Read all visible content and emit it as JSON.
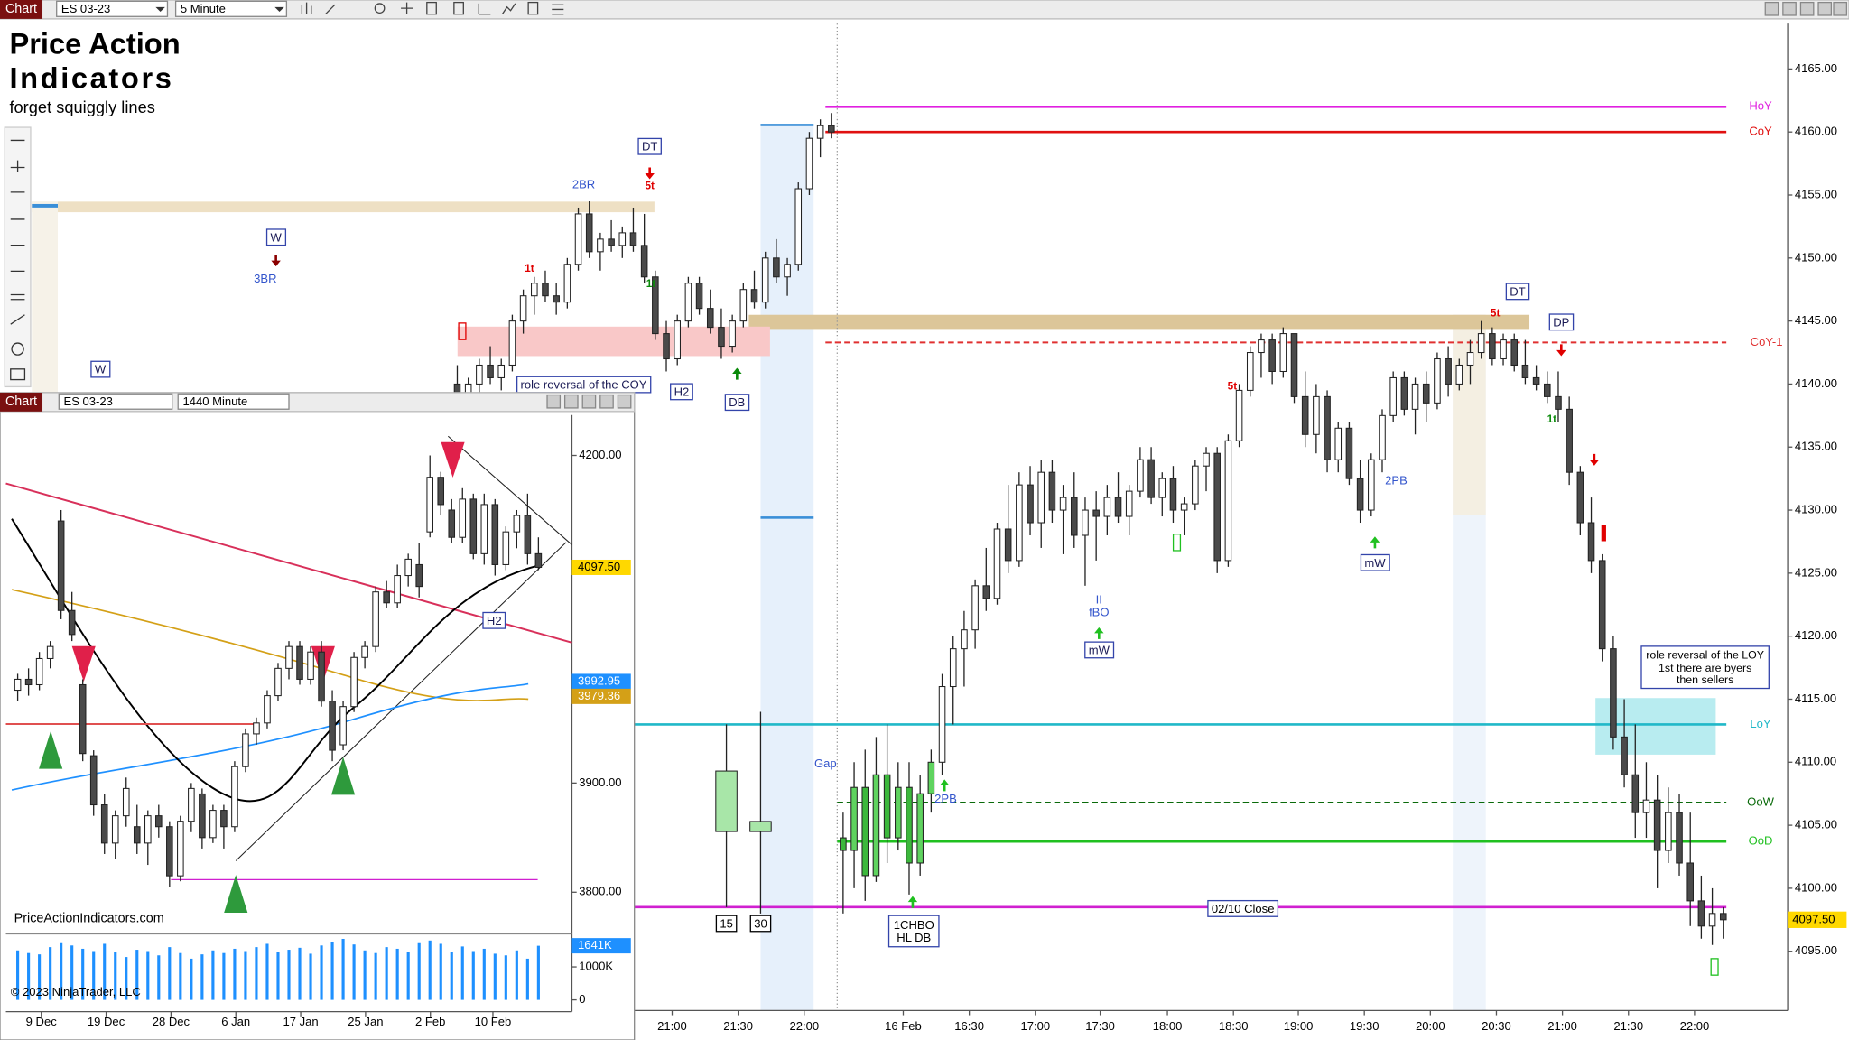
{
  "toolbar": {
    "tab": "Chart",
    "instrument": "ES 03-23",
    "interval": "5 Minute"
  },
  "branding": {
    "title_line1": "Price Action",
    "title_line2": "Indicators",
    "tagline": "forget squiggly lines"
  },
  "main_chart": {
    "ylim": [
      4090.3,
      4168.6
    ],
    "yticks": [
      {
        "value": 4095,
        "label": "4095.00"
      },
      {
        "value": 4100,
        "label": "4100.00"
      },
      {
        "value": 4105,
        "label": "4105.00"
      },
      {
        "value": 4110,
        "label": "4110.00"
      },
      {
        "value": 4115,
        "label": "4115.00"
      },
      {
        "value": 4120,
        "label": "4120.00"
      },
      {
        "value": 4125,
        "label": "4125.00"
      },
      {
        "value": 4130,
        "label": "4130.00"
      },
      {
        "value": 4135,
        "label": "4135.00"
      },
      {
        "value": 4140,
        "label": "4140.00"
      },
      {
        "value": 4145,
        "label": "4145.00"
      },
      {
        "value": 4150,
        "label": "4150.00"
      },
      {
        "value": 4155,
        "label": "4155.00"
      },
      {
        "value": 4160,
        "label": "4160.00"
      },
      {
        "value": 4165,
        "label": "4165.00"
      }
    ],
    "last_price": {
      "value": 4097.5,
      "label": "4097.50"
    },
    "time_labels": [
      "21:00",
      "21:30",
      "22:00",
      "16 Feb",
      "16:30",
      "17:00",
      "17:30",
      "18:00",
      "18:30",
      "19:00",
      "19:30",
      "20:00",
      "20:30",
      "21:00",
      "21:30",
      "22:00"
    ],
    "levels": [
      {
        "name": "HoY",
        "value": 4162,
        "color": "#e020e0",
        "style": "solid"
      },
      {
        "name": "CoY",
        "value": 4160,
        "color": "#e01010",
        "style": "solid"
      },
      {
        "name": "CoY-1",
        "value": 4143.3,
        "color": "#e03030",
        "style": "dashed"
      },
      {
        "name": "LoY",
        "value": 4113,
        "color": "#20b8c8",
        "style": "solid"
      },
      {
        "name": "OoW",
        "value": 4106.8,
        "color": "#0a6a0a",
        "style": "dashed"
      },
      {
        "name": "OoD",
        "value": 4103.7,
        "color": "#20c020",
        "style": "solid"
      },
      {
        "name": "02/10 Close",
        "value": 4098.5,
        "color": "#d020d0",
        "style": "solid"
      }
    ],
    "prior_session": [
      [
        4140,
        4141.5,
        4138,
        4139
      ],
      [
        4139,
        4140.5,
        4137.5,
        4140
      ],
      [
        4140,
        4142,
        4139,
        4141.5
      ],
      [
        4141.5,
        4143,
        4140,
        4140.5
      ],
      [
        4140.5,
        4142,
        4139.5,
        4141.5
      ],
      [
        4141.5,
        4145.5,
        4141,
        4145
      ],
      [
        4145,
        4147.5,
        4144,
        4147
      ],
      [
        4147,
        4148.5,
        4145.5,
        4148
      ],
      [
        4148,
        4149,
        4146.5,
        4147
      ],
      [
        4147,
        4148,
        4145.5,
        4146.5
      ],
      [
        4146.5,
        4150,
        4146,
        4149.5
      ],
      [
        4149.5,
        4154,
        4149,
        4153.5
      ],
      [
        4153.5,
        4154.5,
        4150,
        4150.5
      ],
      [
        4150.5,
        4152,
        4149,
        4151.5
      ],
      [
        4151.5,
        4153,
        4150.5,
        4151
      ],
      [
        4151,
        4152.5,
        4150,
        4152
      ],
      [
        4152,
        4154,
        4150.5,
        4151
      ],
      [
        4151,
        4153.5,
        4148,
        4148.5
      ],
      [
        4148.5,
        4149,
        4143.5,
        4144
      ],
      [
        4144,
        4145,
        4141,
        4142
      ],
      [
        4142,
        4145.5,
        4141.5,
        4145
      ],
      [
        4145,
        4148.5,
        4144.5,
        4148
      ],
      [
        4148,
        4148.5,
        4145.5,
        4146
      ],
      [
        4146,
        4147.5,
        4144,
        4144.5
      ],
      [
        4144.5,
        4146,
        4142,
        4143
      ],
      [
        4143,
        4145.5,
        4142.5,
        4145
      ],
      [
        4145,
        4148,
        4144.5,
        4147.5
      ],
      [
        4147.5,
        4149,
        4146,
        4146.5
      ],
      [
        4146.5,
        4150.5,
        4146,
        4150
      ],
      [
        4150,
        4151.5,
        4148,
        4148.5
      ],
      [
        4148.5,
        4150,
        4147,
        4149.5
      ],
      [
        4149.5,
        4156,
        4149,
        4155.5
      ],
      [
        4155.5,
        4160,
        4155,
        4159.5
      ],
      [
        4159.5,
        4161,
        4158,
        4160.5
      ],
      [
        4160.5,
        4161.5,
        4159.5,
        4160
      ]
    ],
    "session": [
      [
        4104,
        4106,
        4098,
        4103
      ],
      [
        4103,
        4110,
        4100,
        4108
      ],
      [
        4108,
        4111,
        4099,
        4101
      ],
      [
        4101,
        4112,
        4100.5,
        4109
      ],
      [
        4109,
        4113,
        4102,
        4104
      ],
      [
        4104,
        4110,
        4103,
        4108
      ],
      [
        4108,
        4110,
        4099.5,
        4102
      ],
      [
        4102,
        4109,
        4101,
        4107.5
      ],
      [
        4107.5,
        4111,
        4106,
        4110
      ],
      [
        4110,
        4117,
        4109,
        4116
      ],
      [
        4116,
        4120,
        4113,
        4119
      ],
      [
        4119,
        4122,
        4116,
        4120.5
      ],
      [
        4120.5,
        4124.5,
        4119,
        4124
      ],
      [
        4124,
        4127,
        4122,
        4123
      ],
      [
        4123,
        4129,
        4122.5,
        4128.5
      ],
      [
        4128.5,
        4132,
        4125,
        4126
      ],
      [
        4126,
        4133,
        4125.5,
        4132
      ],
      [
        4132,
        4133.5,
        4128,
        4129
      ],
      [
        4129,
        4134,
        4127,
        4133
      ],
      [
        4133,
        4134,
        4129,
        4130
      ],
      [
        4130,
        4132,
        4126.5,
        4131
      ],
      [
        4131,
        4133,
        4127,
        4128
      ],
      [
        4128,
        4131,
        4124,
        4130
      ],
      [
        4130,
        4131.5,
        4126,
        4129.5
      ],
      [
        4129.5,
        4132,
        4128,
        4131
      ],
      [
        4131,
        4133,
        4129,
        4129.5
      ],
      [
        4129.5,
        4132,
        4128,
        4131.5
      ],
      [
        4131.5,
        4135,
        4131,
        4134
      ],
      [
        4134,
        4135,
        4130.5,
        4131
      ],
      [
        4131,
        4133,
        4129.5,
        4132.5
      ],
      [
        4132.5,
        4133.5,
        4129,
        4130
      ],
      [
        4130,
        4131,
        4128,
        4130.5
      ],
      [
        4130.5,
        4134,
        4130,
        4133.5
      ],
      [
        4133.5,
        4135,
        4131.5,
        4134.5
      ],
      [
        4134.5,
        4135,
        4125,
        4126
      ],
      [
        4126,
        4136,
        4125.5,
        4135.5
      ],
      [
        4135.5,
        4140,
        4135,
        4139.5
      ],
      [
        4139.5,
        4143,
        4139,
        4142.5
      ],
      [
        4142.5,
        4144,
        4140.5,
        4143.5
      ],
      [
        4143.5,
        4144,
        4140,
        4141
      ],
      [
        4141,
        4144.5,
        4140.5,
        4144
      ],
      [
        4144,
        4144,
        4138.5,
        4139
      ],
      [
        4139,
        4141,
        4135,
        4136
      ],
      [
        4136,
        4140,
        4134.5,
        4139
      ],
      [
        4139,
        4139.5,
        4133,
        4134
      ],
      [
        4134,
        4137,
        4133,
        4136.5
      ],
      [
        4136.5,
        4137,
        4132,
        4132.5
      ],
      [
        4132.5,
        4134,
        4129,
        4130
      ],
      [
        4130,
        4134.5,
        4129.5,
        4134
      ],
      [
        4134,
        4138,
        4133,
        4137.5
      ],
      [
        4137.5,
        4141,
        4137,
        4140.5
      ],
      [
        4140.5,
        4141,
        4137.5,
        4138
      ],
      [
        4138,
        4140.5,
        4136,
        4140
      ],
      [
        4140,
        4141,
        4137,
        4138.5
      ],
      [
        4138.5,
        4142.5,
        4138,
        4142
      ],
      [
        4142,
        4143,
        4139,
        4140
      ],
      [
        4140,
        4142,
        4139.5,
        4141.5
      ],
      [
        4141.5,
        4143.5,
        4140,
        4142.5
      ],
      [
        4142.5,
        4145,
        4142,
        4144
      ],
      [
        4144,
        4144.5,
        4141.5,
        4142
      ],
      [
        4142,
        4144,
        4141.5,
        4143.5
      ],
      [
        4143.5,
        4144,
        4141,
        4141.5
      ],
      [
        4141.5,
        4143.5,
        4140,
        4140.5
      ],
      [
        4140.5,
        4141.5,
        4139.5,
        4140
      ],
      [
        4140,
        4141,
        4138.5,
        4139
      ],
      [
        4139,
        4141,
        4137,
        4138
      ],
      [
        4138,
        4139,
        4132,
        4133
      ],
      [
        4133,
        4133.5,
        4128,
        4129
      ],
      [
        4129,
        4131,
        4125,
        4126
      ],
      [
        4126,
        4126.5,
        4118,
        4119
      ],
      [
        4119,
        4120,
        4111,
        4112
      ],
      [
        4112,
        4115,
        4108,
        4109
      ],
      [
        4109,
        4113,
        4104,
        4106
      ],
      [
        4106,
        4110,
        4104,
        4107
      ],
      [
        4107,
        4109,
        4100,
        4103
      ],
      [
        4103,
        4108,
        4102,
        4106
      ],
      [
        4106,
        4107.5,
        4101,
        4102
      ],
      [
        4102,
        4106,
        4097,
        4099
      ],
      [
        4099,
        4101,
        4096,
        4097
      ],
      [
        4097,
        4100,
        4095.5,
        4098
      ],
      [
        4098,
        4098.5,
        4096,
        4097.5
      ]
    ],
    "htf_candles": [
      {
        "label": "15",
        "ohlc": [
          4104.5,
          4113,
          4098.5,
          4109.3
        ]
      },
      {
        "label": "30",
        "ohlc": [
          4104.5,
          4114,
          4098,
          4105.3
        ]
      }
    ],
    "annotations": [
      "DT",
      "5t",
      "2BR",
      "1t",
      "1t",
      "W",
      "3BR",
      "W",
      "H2",
      "DB",
      "role reversal of the COY",
      "Gap",
      "2PB",
      "1CHBO",
      "HL DB",
      "II",
      "fBO",
      "mW",
      "mW",
      "2PB",
      "DT",
      "DP",
      "5t",
      "5t",
      "1t",
      "role reversal of the LOY",
      "1st there are byers",
      "then sellers"
    ]
  },
  "inset": {
    "toolbar": {
      "tab": "Chart",
      "instrument": "ES 03-23",
      "interval": "1440 Minute"
    },
    "ylim": [
      3764,
      4237
    ],
    "yticks": [
      {
        "value": 4200,
        "label": "4200.00"
      },
      {
        "value": 3900,
        "label": "3900.00"
      },
      {
        "value": 3800,
        "label": "3800.00"
      }
    ],
    "price_tags": [
      {
        "value": 4097.5,
        "label": "4097.50",
        "color": "#ffd800"
      },
      {
        "value": 3992.95,
        "label": "3992.95",
        "color": "#1e90ff"
      },
      {
        "value": 3979.36,
        "label": "3979.36",
        "color": "#d4a017"
      }
    ],
    "dates": [
      "9 Dec",
      "19 Dec",
      "28 Dec",
      "6 Jan",
      "17 Jan",
      "25 Jan",
      "2 Feb",
      "10 Feb"
    ],
    "candles": [
      [
        3985,
        4000,
        3975,
        3995
      ],
      [
        3995,
        4005,
        3980,
        3990
      ],
      [
        3990,
        4020,
        3985,
        4014
      ],
      [
        4014,
        4030,
        4005,
        4025
      ],
      [
        4140,
        4150,
        4050,
        4058
      ],
      [
        4058,
        4075,
        4030,
        4036
      ],
      [
        3990,
        3995,
        3920,
        3927
      ],
      [
        3925,
        3930,
        3870,
        3880
      ],
      [
        3880,
        3890,
        3835,
        3845
      ],
      [
        3845,
        3875,
        3830,
        3870
      ],
      [
        3870,
        3905,
        3860,
        3895
      ],
      [
        3860,
        3880,
        3835,
        3845
      ],
      [
        3845,
        3875,
        3825,
        3870
      ],
      [
        3870,
        3880,
        3850,
        3860
      ],
      [
        3860,
        3865,
        3805,
        3815
      ],
      [
        3815,
        3870,
        3810,
        3865
      ],
      [
        3865,
        3900,
        3855,
        3895
      ],
      [
        3890,
        3895,
        3840,
        3850
      ],
      [
        3850,
        3880,
        3845,
        3875
      ],
      [
        3875,
        3880,
        3840,
        3860
      ],
      [
        3860,
        3920,
        3855,
        3915
      ],
      [
        3915,
        3950,
        3910,
        3945
      ],
      [
        3945,
        3960,
        3935,
        3955
      ],
      [
        3955,
        3985,
        3950,
        3980
      ],
      [
        3980,
        4010,
        3975,
        4005
      ],
      [
        4005,
        4030,
        3995,
        4025
      ],
      [
        4025,
        4030,
        3990,
        3995
      ],
      [
        3995,
        4025,
        3990,
        4020
      ],
      [
        4020,
        4030,
        3970,
        3975
      ],
      [
        3975,
        3985,
        3920,
        3930
      ],
      [
        3935,
        3975,
        3930,
        3970
      ],
      [
        3970,
        4020,
        3965,
        4015
      ],
      [
        4015,
        4030,
        4005,
        4025
      ],
      [
        4025,
        4080,
        4020,
        4075
      ],
      [
        4075,
        4085,
        4060,
        4065
      ],
      [
        4065,
        4100,
        4060,
        4090
      ],
      [
        4090,
        4110,
        4080,
        4105
      ],
      [
        4100,
        4120,
        4070,
        4080
      ],
      [
        4130,
        4200,
        4125,
        4180
      ],
      [
        4180,
        4185,
        4145,
        4155
      ],
      [
        4150,
        4160,
        4120,
        4125
      ],
      [
        4125,
        4170,
        4120,
        4160
      ],
      [
        4160,
        4165,
        4105,
        4110
      ],
      [
        4110,
        4165,
        4100,
        4155
      ],
      [
        4155,
        4160,
        4090,
        4100
      ],
      [
        4100,
        4135,
        4095,
        4130
      ],
      [
        4130,
        4150,
        4115,
        4145
      ],
      [
        4145,
        4165,
        4100,
        4110
      ],
      [
        4110,
        4125,
        4095,
        4097.5
      ]
    ],
    "volume": {
      "ylim": [
        0,
        1930
      ],
      "yticks": [
        {
          "value": 1000,
          "label": "1000K"
        },
        0
      ],
      "values": [
        1500,
        1420,
        1380,
        1600,
        1720,
        1650,
        1550,
        1480,
        1700,
        1450,
        1300,
        1520,
        1480,
        1350,
        1600,
        1420,
        1250,
        1380,
        1500,
        1420,
        1550,
        1480,
        1600,
        1700,
        1450,
        1520,
        1580,
        1400,
        1650,
        1750,
        1850,
        1680,
        1500,
        1420,
        1600,
        1550,
        1450,
        1720,
        1800,
        1700,
        1450,
        1620,
        1480,
        1550,
        1400,
        1350,
        1500,
        1250,
        1641
      ],
      "last_tag": {
        "value": 1641,
        "label": "1641K"
      }
    },
    "annotations": [
      "H2"
    ],
    "watermark": "PriceActionIndicators.com",
    "copyright": "© 2023 NinjaTrader, LLC"
  }
}
